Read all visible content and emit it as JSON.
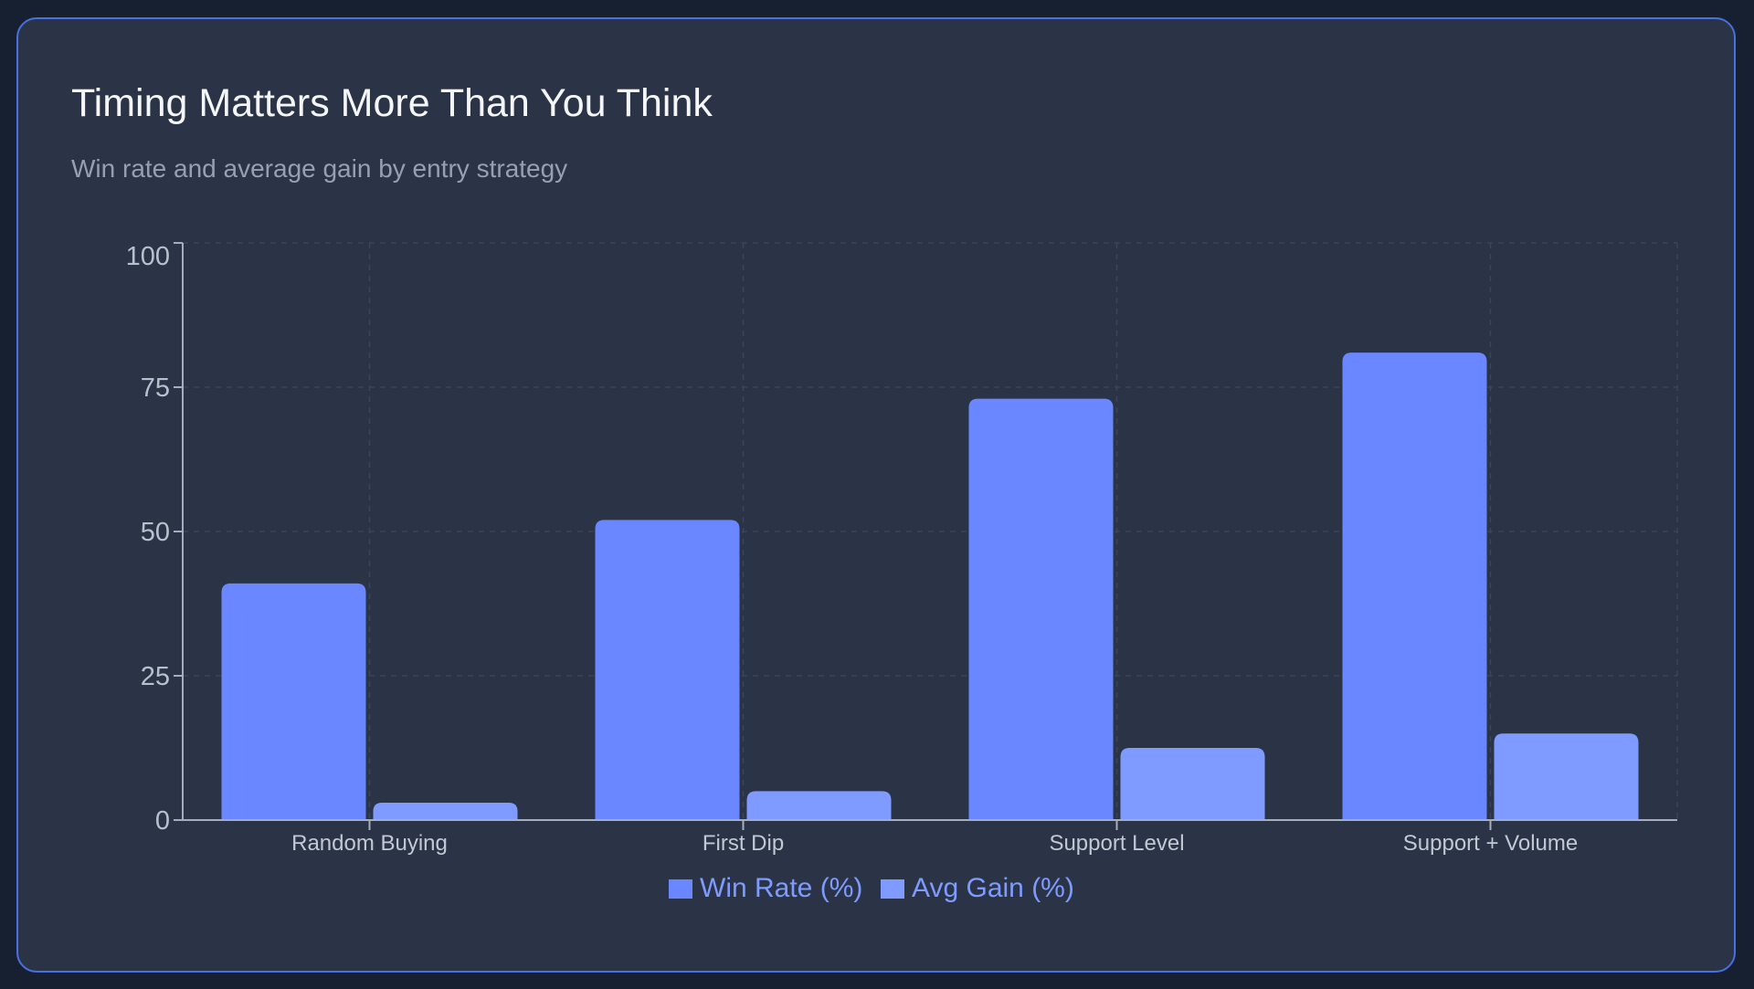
{
  "title": "Timing Matters More Than You Think",
  "subtitle": "Win rate and average gain by entry strategy",
  "colors": {
    "win_rate": "#6b87ff",
    "avg_gain": "#7f9bff",
    "legend_text": "#7f9bff",
    "axis": "#a5aebd",
    "grid": "#3a4558",
    "tick_text": "#b8c0cc",
    "category_text": "#c2c9d4"
  },
  "chart_data": {
    "type": "bar",
    "categories": [
      "Random Buying",
      "First Dip",
      "Support Level",
      "Support + Volume"
    ],
    "series": [
      {
        "name": "Win Rate (%)",
        "values": [
          41,
          52,
          73,
          81
        ]
      },
      {
        "name": "Avg Gain (%)",
        "values": [
          3,
          5,
          12.5,
          15
        ]
      }
    ],
    "y_ticks": [
      "0",
      "25",
      "50",
      "75",
      "100"
    ],
    "ylim": [
      0,
      100
    ],
    "grid": true,
    "legend_position": "bottom-center"
  }
}
